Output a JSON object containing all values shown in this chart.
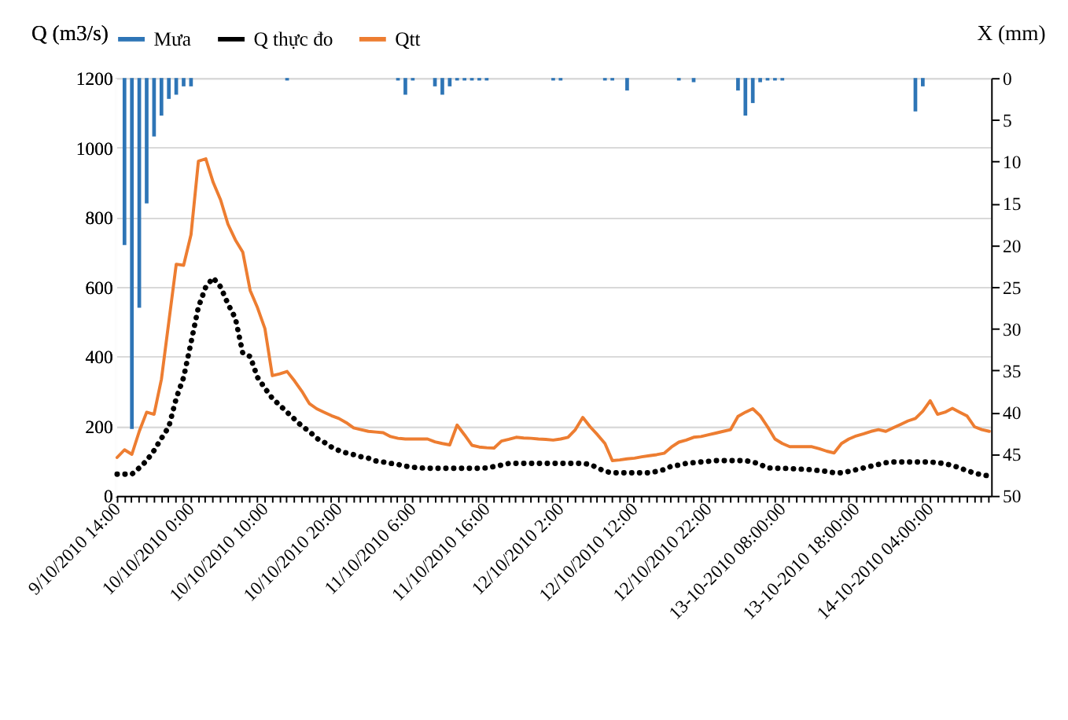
{
  "chart_data": {
    "type": "bar",
    "ylabel": "Q (m3/s)",
    "y2label": "X (mm)",
    "categories": [
      "9/10/2010 14:00",
      null,
      null,
      null,
      null,
      null,
      null,
      null,
      null,
      null,
      "10/10/2010 0:00",
      null,
      null,
      null,
      null,
      null,
      null,
      null,
      null,
      null,
      "10/10/2010 10:00",
      null,
      null,
      null,
      null,
      null,
      null,
      null,
      null,
      null,
      "10/10/2010 20:00",
      null,
      null,
      null,
      null,
      null,
      null,
      null,
      null,
      null,
      "11/10/2010 6:00",
      null,
      null,
      null,
      null,
      null,
      null,
      null,
      null,
      null,
      "11/10/2010 16:00",
      null,
      null,
      null,
      null,
      null,
      null,
      null,
      null,
      null,
      "12/10/2010 2:00",
      null,
      null,
      null,
      null,
      null,
      null,
      null,
      null,
      null,
      "12/10/2010 12:00",
      null,
      null,
      null,
      null,
      null,
      null,
      null,
      null,
      null,
      "12/10/2010 22:00",
      null,
      null,
      null,
      null,
      null,
      null,
      null,
      null,
      null,
      "13-10-2010 08:00:00",
      null,
      null,
      null,
      null,
      null,
      null,
      null,
      null,
      null,
      "13-10-2010 18:00:00",
      null,
      null,
      null,
      null,
      null,
      null,
      null,
      null,
      null,
      "14-10-2010 04:00:00",
      null,
      null,
      null,
      null,
      null,
      null,
      null,
      null
    ],
    "series": [
      {
        "name": "Mưa",
        "axis": "y2",
        "color": "#2e75b6",
        "values": [
          0,
          20,
          42,
          27.5,
          15,
          7,
          4.5,
          2.5,
          2,
          1,
          1,
          0,
          0,
          0,
          0,
          0,
          0,
          0,
          0,
          0,
          0,
          0,
          0,
          0.3,
          0,
          0,
          0,
          0,
          0,
          0,
          0,
          0,
          0,
          0,
          0,
          0,
          0,
          0,
          0.3,
          2,
          0.3,
          0,
          0,
          1,
          2,
          1,
          0.3,
          0.3,
          0.3,
          0.3,
          0.3,
          0,
          0,
          0,
          0,
          0,
          0,
          0,
          0,
          0.3,
          0.3,
          0,
          0,
          0,
          0,
          0,
          0.3,
          0.3,
          0,
          1.5,
          0,
          0,
          0,
          0,
          0,
          0,
          0.3,
          0,
          0.5,
          0,
          0,
          0,
          0,
          0,
          1.5,
          4.5,
          3,
          0.5,
          0.3,
          0.3,
          0.3,
          0,
          0,
          0,
          0,
          0,
          0,
          0,
          0,
          0,
          0,
          0,
          0,
          0,
          0,
          0,
          0,
          0,
          4,
          1,
          0,
          0,
          0,
          0,
          0,
          0,
          0,
          0,
          0
        ]
      },
      {
        "name": "Q thực đo",
        "type": "line",
        "line_style": "dotted",
        "color": "#000000",
        "values": [
          62,
          62,
          62,
          80,
          101,
          130,
          165,
          198,
          280,
          340,
          440,
          542,
          600,
          626,
          600,
          551,
          510,
          410,
          400,
          340,
          309,
          280,
          260,
          240,
          220,
          200,
          185,
          165,
          154,
          140,
          130,
          123,
          118,
          112,
          108,
          100,
          97,
          93,
          90,
          85,
          82,
          80,
          79,
          79,
          79,
          79,
          79,
          79,
          79,
          79,
          80,
          84,
          88,
          93,
          93,
          93,
          93,
          93,
          93,
          93,
          93,
          93,
          93,
          93,
          90,
          80,
          70,
          66,
          66,
          66,
          66,
          66,
          66,
          70,
          75,
          85,
          88,
          93,
          95,
          97,
          99,
          101,
          101,
          101,
          101,
          101,
          97,
          90,
          80,
          79,
          79,
          78,
          77,
          76,
          75,
          72,
          70,
          66,
          66,
          70,
          75,
          80,
          85,
          90,
          95,
          97,
          97,
          97,
          97,
          97,
          97,
          95,
          92,
          87,
          80,
          72,
          65,
          60,
          57
        ]
      },
      {
        "name": "Qtt",
        "type": "line",
        "line_style": "solid",
        "color": "#ed7d31",
        "values": [
          110,
          132,
          119,
          185,
          240,
          234,
          335,
          500,
          665,
          662,
          750,
          961,
          968,
          900,
          850,
          780,
          735,
          700,
          590,
          540,
          480,
          345,
          350,
          357,
          330,
          300,
          265,
          250,
          240,
          230,
          222,
          210,
          195,
          190,
          185,
          183,
          181,
          170,
          165,
          163,
          163,
          163,
          163,
          155,
          150,
          146,
          203,
          175,
          145,
          140,
          138,
          137,
          157,
          162,
          168,
          166,
          165,
          163,
          162,
          160,
          163,
          168,
          190,
          225,
          198,
          175,
          150,
          101,
          103,
          106,
          108,
          112,
          115,
          118,
          122,
          140,
          154,
          160,
          168,
          170,
          175,
          180,
          185,
          190,
          228,
          240,
          250,
          230,
          198,
          163,
          150,
          141,
          141,
          141,
          141,
          135,
          128,
          123,
          150,
          163,
          172,
          178,
          185,
          190,
          185,
          195,
          205,
          215,
          222,
          243,
          273,
          234,
          240,
          251,
          240,
          229,
          198,
          190,
          185
        ]
      }
    ],
    "ylim": [
      0,
      1200
    ],
    "yticks": [
      0,
      200,
      400,
      600,
      800,
      1000,
      1200
    ],
    "y2lim": [
      50,
      0
    ],
    "y2ticks": [
      0,
      5,
      10,
      15,
      20,
      25,
      30,
      35,
      40,
      45,
      50
    ],
    "grid": "y",
    "legend": "top",
    "marker": "none"
  }
}
